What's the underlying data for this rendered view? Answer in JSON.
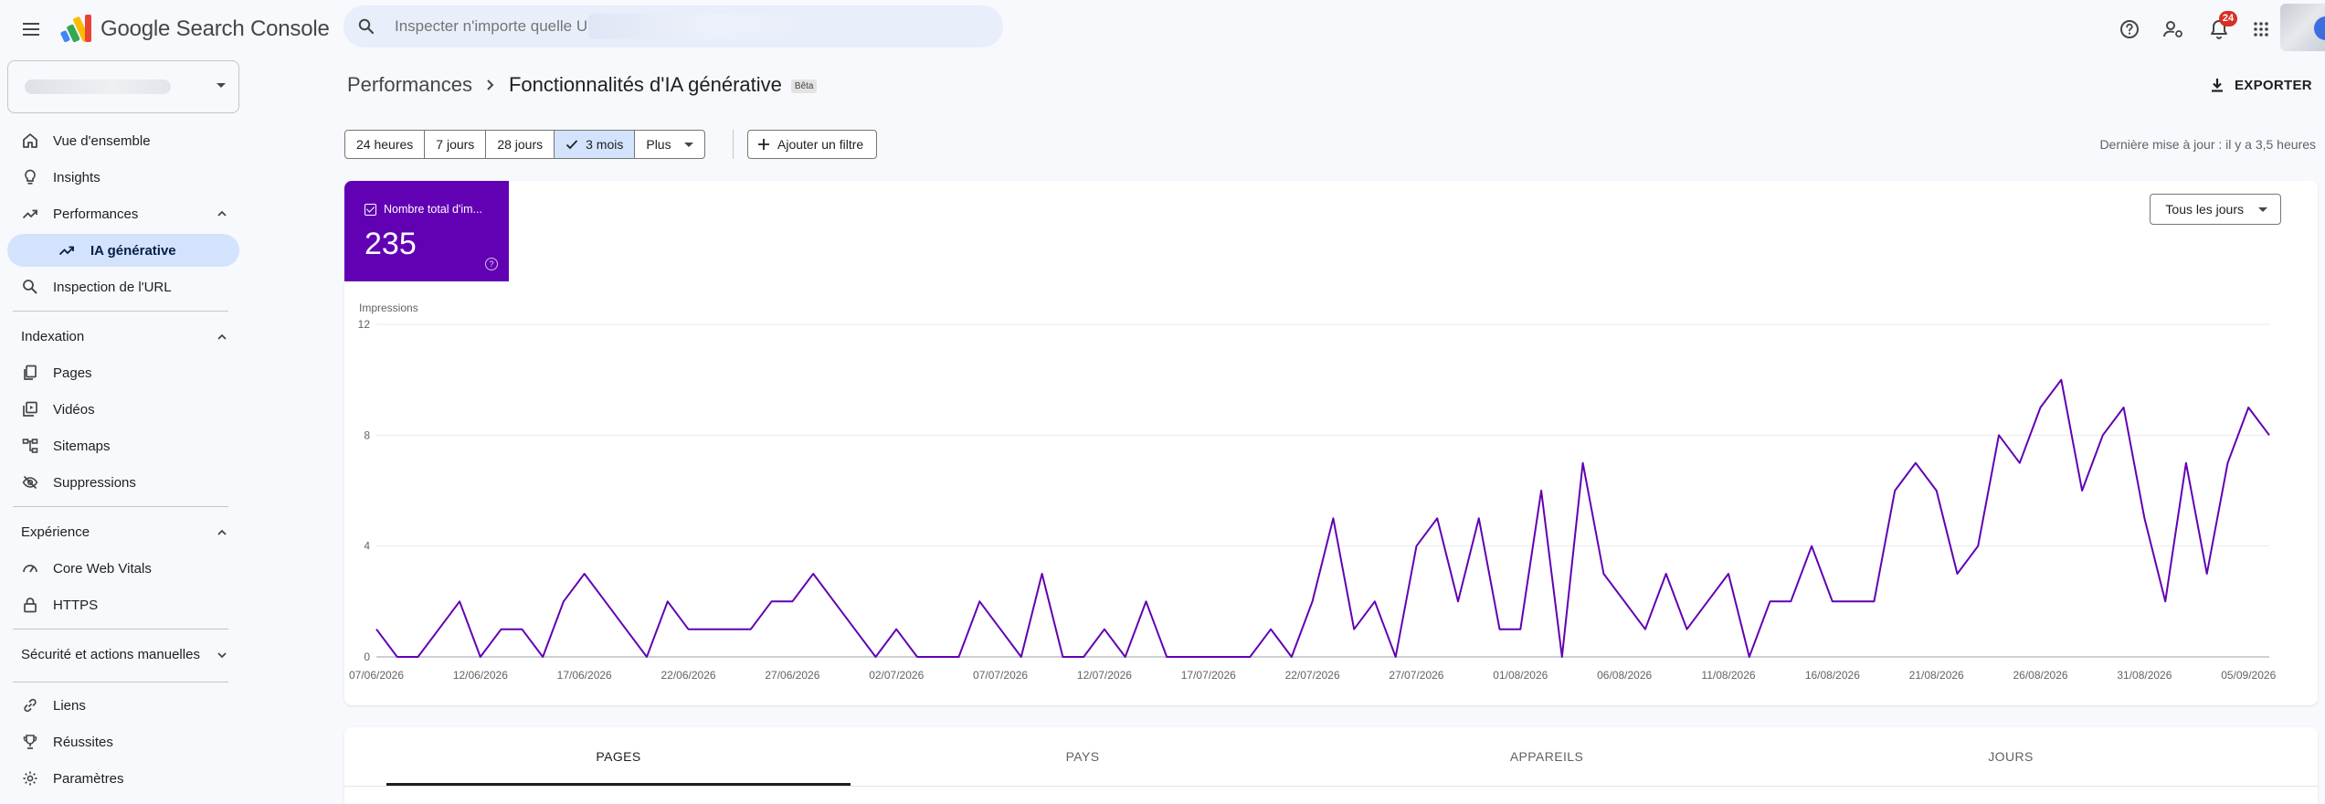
{
  "app": {
    "brand": "Google Search Console",
    "search_placeholder": "Inspecter n'importe quelle U",
    "notifications_count": "24"
  },
  "sidebar": {
    "overview": "Vue d'ensemble",
    "insights": "Insights",
    "performances": "Performances",
    "ia_generative": "IA générative",
    "url_inspection": "Inspection de l'URL",
    "indexation_header": "Indexation",
    "pages": "Pages",
    "videos": "Vidéos",
    "sitemaps": "Sitemaps",
    "suppressions": "Suppressions",
    "experience_header": "Expérience",
    "core_web_vitals": "Core Web Vitals",
    "https": "HTTPS",
    "security_header": "Sécurité et actions manuelles",
    "links": "Liens",
    "achievements": "Réussites",
    "settings": "Paramètres"
  },
  "header": {
    "breadcrumb_parent": "Performances",
    "title": "Fonctionnalités d'IA générative",
    "badge": "Bêta",
    "export": "EXPORTER"
  },
  "filters": {
    "ranges": [
      "24 heures",
      "7 jours",
      "28 jours",
      "3 mois",
      "Plus"
    ],
    "selected_range": "3 mois",
    "add_filter": "Ajouter un filtre",
    "last_update": "Dernière mise à jour : il y a 3,5 heures"
  },
  "metric": {
    "label": "Nombre total d'im...",
    "value": "235",
    "color": "#6200b3"
  },
  "day_selector": "Tous les jours",
  "chart_data": {
    "type": "line",
    "ylabel": "Impressions",
    "ylim": [
      0,
      12
    ],
    "yticks": [
      0,
      4,
      8,
      12
    ],
    "grid": true,
    "color": "#6200b3",
    "xtick_labels": [
      "07/06/2026",
      "12/06/2026",
      "17/06/2026",
      "22/06/2026",
      "27/06/2026",
      "02/07/2026",
      "07/07/2026",
      "12/07/2026",
      "17/07/2026",
      "22/07/2026",
      "27/07/2026",
      "01/08/2026",
      "06/08/2026",
      "11/08/2026",
      "16/08/2026",
      "21/08/2026",
      "26/08/2026",
      "31/08/2026",
      "05/09/2026"
    ],
    "series": [
      {
        "values": [
          1,
          0,
          0,
          1,
          2,
          0,
          1,
          1,
          0,
          2,
          3,
          2,
          1,
          0,
          2,
          1,
          1,
          1,
          1,
          2,
          2,
          3,
          2,
          1,
          0,
          1,
          0,
          0,
          0,
          2,
          1,
          0,
          3,
          0,
          0,
          1,
          0,
          2,
          0,
          0,
          0,
          0,
          0,
          1,
          0,
          2,
          5,
          1,
          2,
          0,
          4,
          5,
          2,
          5,
          1,
          1,
          6,
          0,
          7,
          3,
          2,
          1,
          3,
          1,
          2,
          3,
          0,
          2,
          2,
          4,
          2,
          2,
          2,
          6,
          7,
          6,
          3,
          4,
          8,
          7,
          9,
          10,
          6,
          8,
          9,
          5,
          2,
          7,
          3,
          7,
          9,
          8
        ]
      }
    ]
  },
  "tabs": [
    "PAGES",
    "PAYS",
    "APPAREILS",
    "JOURS"
  ],
  "active_tab": "PAGES"
}
